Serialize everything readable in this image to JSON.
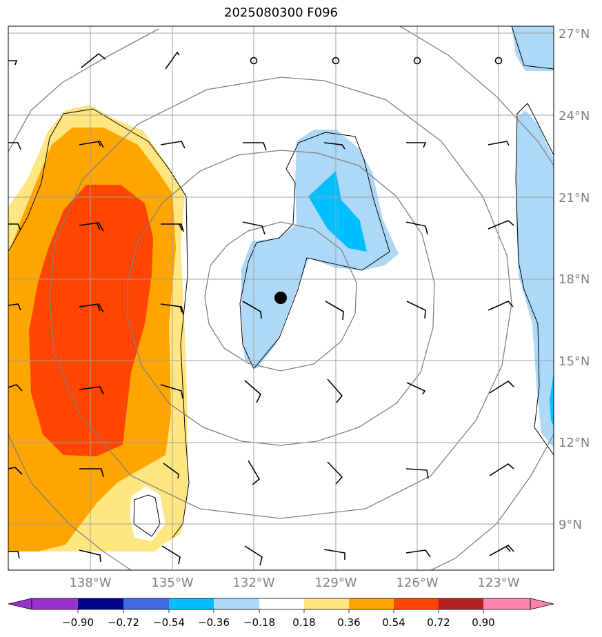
{
  "title": "2025080300 F096",
  "map": {
    "lat_labels": [
      "27°N",
      "24°N",
      "21°N",
      "18°N",
      "15°N",
      "12°N",
      "9°N"
    ],
    "lon_labels": [
      "138°W",
      "135°W",
      "132°W",
      "129°W",
      "126°W",
      "123°W"
    ],
    "gridline_color": "#a0a0a0",
    "tick_label_color": "#808080",
    "storm_center": {
      "lat": 17.3,
      "lon": -131.0
    }
  },
  "colorbar": {
    "tick_labels": [
      "−0.90",
      "−0.72",
      "−0.54",
      "−0.36",
      "−0.18",
      "0.18",
      "0.36",
      "0.54",
      "0.72",
      "0.90"
    ],
    "colors": [
      "#9932cc",
      "#00008b",
      "#4169e1",
      "#00bfff",
      "#add8f8",
      "#ffffff",
      "#ffe680",
      "#ffa500",
      "#ff4500",
      "#b22222",
      "#ff85b0"
    ]
  }
}
